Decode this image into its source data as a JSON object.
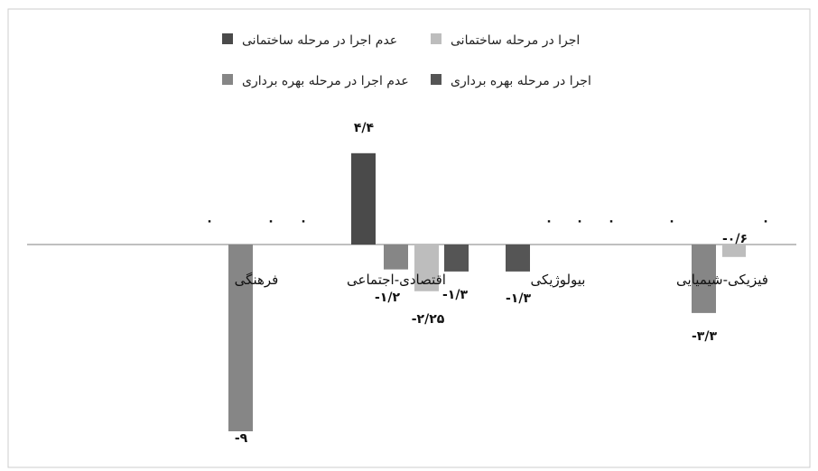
{
  "chart_data": {
    "type": "bar",
    "categories": [
      "فرهنگی",
      "اقتصادی-اجتماعی",
      "بیولوژیکی",
      "فیزیکی-شیمیایی"
    ],
    "series": [
      {
        "name": "اجرا در مرحله ساختمانی",
        "color": "#bdbdbd",
        "values": [
          0,
          -2.25,
          0,
          -0.6
        ],
        "labels": [
          "۰",
          "-۲/۲۵",
          "۰",
          "-۰/۶"
        ]
      },
      {
        "name": "عدم اجرا در مرحله ساختمانی",
        "color": "#4a4a4a",
        "values": [
          0,
          4.4,
          0,
          0
        ],
        "labels": [
          "۰",
          "۴/۴",
          "۰",
          "۰"
        ]
      },
      {
        "name": "اجرا در مرحله بهره برداری",
        "color": "#555555",
        "values": [
          0,
          -1.3,
          -1.3,
          0
        ],
        "labels": [
          "۰",
          "-۱/۳",
          "-۱/۳",
          "۰"
        ]
      },
      {
        "name": "عدم اجرا در مرحله بهره برداری",
        "color": "#868686",
        "values": [
          -9,
          -1.2,
          0,
          -3.3
        ],
        "labels": [
          "-۹",
          "-۱/۲",
          "۰",
          "-۳/۳"
        ]
      }
    ],
    "legend_position": "top",
    "grid": false
  }
}
